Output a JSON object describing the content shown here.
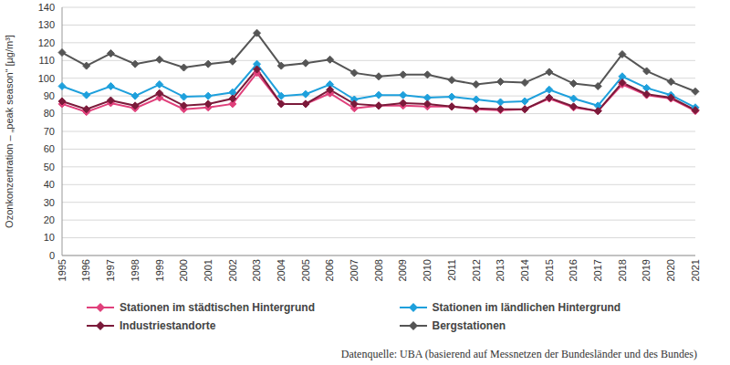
{
  "chart_data": {
    "type": "line",
    "y_label": "Ozonkonzentration – „peak season“ [µg/m³]",
    "source": "Datenquelle: UBA (basierend auf Messnetzen der Bundesländer und des Bundes)",
    "categories": [
      "1995",
      "1996",
      "1997",
      "1998",
      "1999",
      "2000",
      "2001",
      "2002",
      "2003",
      "2004",
      "2005",
      "2006",
      "2007",
      "2008",
      "2009",
      "2010",
      "2011",
      "2012",
      "2013",
      "2014",
      "2015",
      "2016",
      "2017",
      "2018",
      "2019",
      "2020",
      "2021"
    ],
    "series": [
      {
        "name": "Stationen im städtischen Hintergrund",
        "color": "#e0407b",
        "marker": "diamond",
        "values": [
          85.5,
          81,
          86,
          83,
          89,
          82.5,
          83.5,
          85.5,
          103,
          85.5,
          85.5,
          91.5,
          83,
          84.5,
          84.5,
          84,
          84,
          82.5,
          82,
          82.5,
          88.5,
          83.5,
          81.5,
          96.5,
          90.5,
          88.5,
          81.5
        ]
      },
      {
        "name": "Stationen im ländlichen Hintergrund",
        "color": "#1ea0dc",
        "marker": "diamond",
        "values": [
          95.5,
          90.5,
          95.5,
          90,
          96.5,
          89.5,
          90,
          92,
          108,
          90,
          91,
          96.5,
          88,
          90.5,
          90.5,
          89,
          89.5,
          88,
          86.5,
          87,
          93.5,
          88.5,
          84.5,
          101,
          94.5,
          90.5,
          83.5
        ]
      },
      {
        "name": "Industriestandorte",
        "color": "#7b1a3a",
        "marker": "diamond",
        "values": [
          87,
          82.5,
          87.5,
          84.5,
          91.5,
          84.5,
          85.5,
          88.5,
          105,
          85.5,
          85.5,
          93.5,
          85.5,
          84.5,
          86,
          85.5,
          84,
          83,
          82.5,
          82.5,
          89,
          84,
          81.5,
          97.5,
          91,
          89,
          82
        ]
      },
      {
        "name": "Bergstationen",
        "color": "#555555",
        "marker": "diamond",
        "values": [
          114.5,
          107,
          114,
          108,
          110.5,
          106,
          108,
          109.5,
          125.5,
          107,
          108.5,
          110.5,
          103,
          101,
          102,
          102,
          99,
          96.5,
          98,
          97.5,
          103.5,
          97,
          95.5,
          113.5,
          104,
          98,
          92.5
        ]
      }
    ],
    "ylim": [
      0,
      140
    ],
    "yticks": [
      0,
      10,
      20,
      30,
      40,
      50,
      60,
      70,
      80,
      90,
      100,
      110,
      120,
      130,
      140
    ],
    "grid": true,
    "legend": "bottom"
  }
}
